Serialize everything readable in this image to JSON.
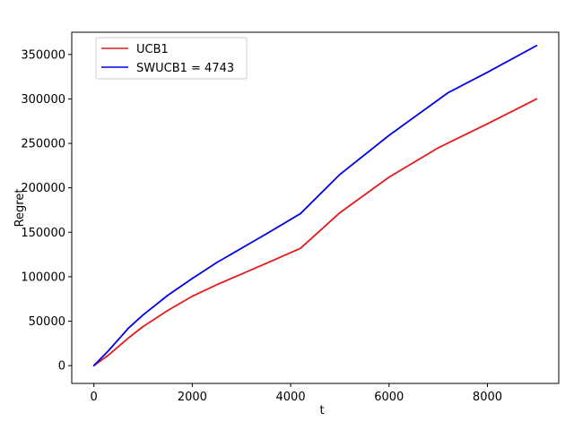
{
  "chart_data": {
    "type": "line",
    "title": "",
    "xlabel": "t",
    "ylabel": "Regret",
    "xlim": [
      -450,
      9450
    ],
    "ylim": [
      -20000,
      375000
    ],
    "xticks": [
      0,
      2000,
      4000,
      6000,
      8000
    ],
    "yticks": [
      0,
      50000,
      100000,
      150000,
      200000,
      250000,
      300000,
      350000
    ],
    "grid": false,
    "legend_position": "top-left",
    "series": [
      {
        "name": "UCB1",
        "color": "#e31a1c",
        "x": [
          0,
          300,
          700,
          1000,
          1500,
          2000,
          2500,
          3000,
          3500,
          4200,
          5000,
          6000,
          7000,
          8000,
          9000
        ],
        "y": [
          0,
          12000,
          31000,
          44000,
          62000,
          78000,
          91000,
          103000,
          115000,
          132000,
          172000,
          212000,
          245000,
          272000,
          300000
        ]
      },
      {
        "name": "SWUCB1 = 4743",
        "color": "#0000e6",
        "x": [
          0,
          300,
          700,
          1000,
          1500,
          2000,
          2500,
          3000,
          3500,
          4200,
          5000,
          6000,
          7200,
          8000,
          9000
        ],
        "y": [
          0,
          17000,
          42000,
          57000,
          79000,
          98000,
          116000,
          132000,
          148000,
          171000,
          215000,
          259000,
          307000,
          330000,
          360000
        ]
      }
    ]
  }
}
